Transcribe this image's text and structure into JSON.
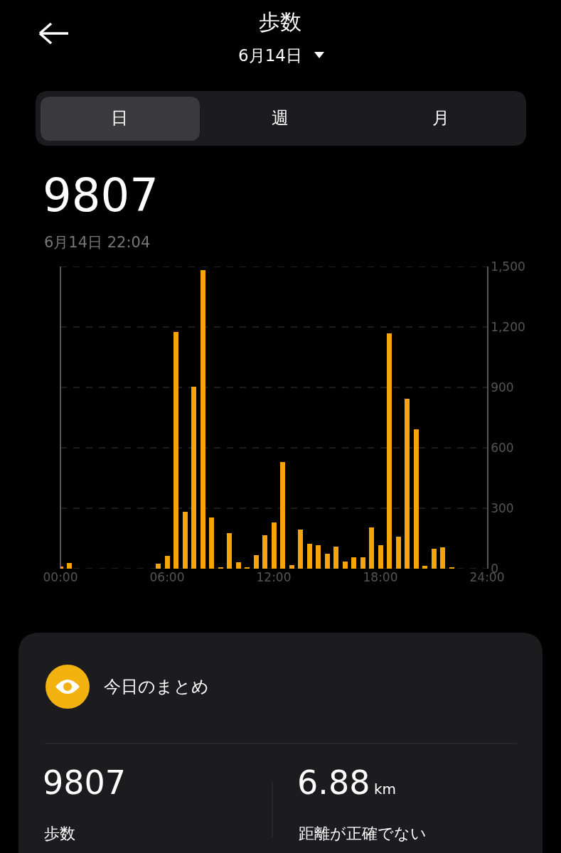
{
  "chart_data": {
    "type": "bar",
    "title": "歩数",
    "subtitle": "6月14日",
    "x": [
      0,
      0.5,
      5.5,
      6,
      6.5,
      7,
      7.5,
      8,
      8.5,
      9,
      9.5,
      10,
      10.5,
      11,
      11.5,
      12,
      12.5,
      13,
      13.5,
      14,
      14.5,
      15,
      15.5,
      16,
      16.5,
      17,
      17.5,
      18,
      18.5,
      19,
      19.5,
      20,
      20.5,
      21,
      21.5,
      22
    ],
    "values": [
      12,
      28,
      26,
      64,
      1175,
      283,
      903,
      1484,
      255,
      5,
      177,
      33,
      7,
      66,
      167,
      228,
      530,
      16,
      193,
      122,
      118,
      75,
      108,
      35,
      55,
      58,
      203,
      118,
      1170,
      158,
      844,
      691,
      14,
      100,
      105,
      8
    ],
    "color": "#f5a50a",
    "xlim": [
      0,
      24
    ],
    "xticks": [
      {
        "value": 0,
        "label": "00:00"
      },
      {
        "value": 6,
        "label": "06:00"
      },
      {
        "value": 12,
        "label": "12:00"
      },
      {
        "value": 18,
        "label": "18:00"
      },
      {
        "value": 24,
        "label": "24:00"
      }
    ],
    "ylim": [
      0,
      1500
    ],
    "yticks": [
      0,
      300,
      600,
      900,
      {
        "value": 1200,
        "label": "1,200"
      },
      {
        "value": 1500,
        "label": "1,500"
      }
    ],
    "grid": "y",
    "annotations": [
      "日",
      "週",
      "月",
      "9807",
      "6月14日 22:04",
      "今日のまとめ",
      "9807",
      "6.88",
      "km",
      "歩数",
      "距離が正確でない"
    ]
  }
}
